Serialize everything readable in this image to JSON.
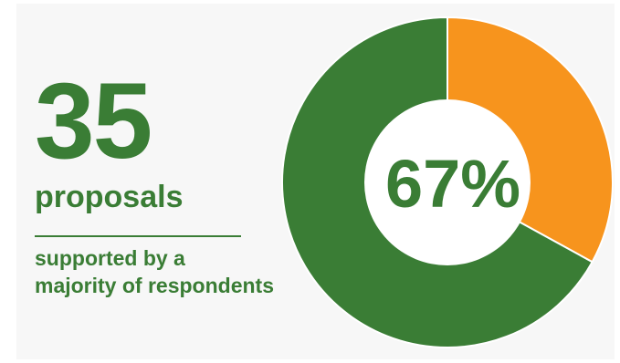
{
  "stat": {
    "number": "35",
    "unit": "proposals",
    "caption_lines": [
      "supported by a",
      "majority of respondents"
    ]
  },
  "colors": {
    "primary": "#3a7d35",
    "accent": "#f7941d",
    "divider": "#3a7d35",
    "hole": "#ffffff",
    "panel": "#f7f7f7"
  },
  "chart_data": {
    "type": "pie",
    "donut": true,
    "center_label": "67%",
    "slices": [
      {
        "value": 67,
        "color": "#3a7d35"
      },
      {
        "value": 33,
        "color": "#f7941d"
      }
    ]
  }
}
